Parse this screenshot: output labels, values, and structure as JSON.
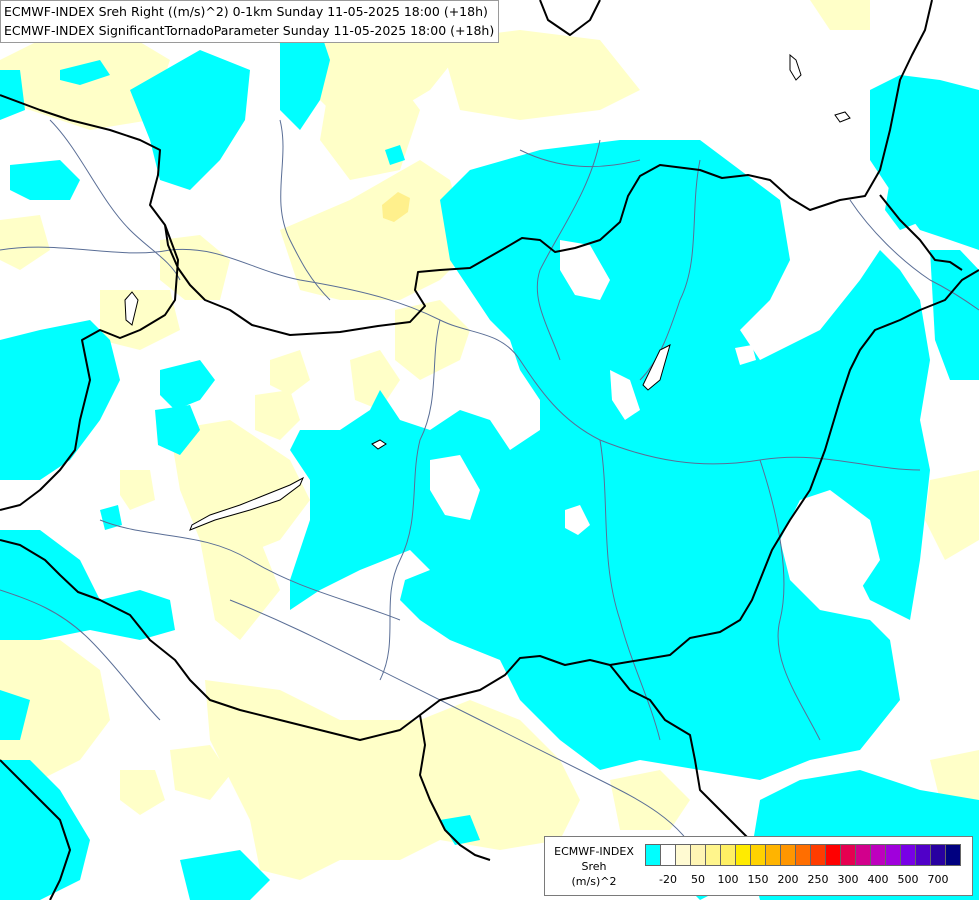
{
  "title": {
    "line1": "ECMWF-INDEX Sreh Right ((m/s)^2) 0-1km Sunday 11-05-2025 18:00 (+18h)",
    "line2": "ECMWF-INDEX SignificantTornadoParameter Sunday 11-05-2025 18:00 (+18h)"
  },
  "legend": {
    "caption": [
      "ECMWF-INDEX",
      "Sreh",
      "(m/s)^2"
    ],
    "swatch_colors": [
      "#00ffff",
      "#ffffff",
      "#fffad2",
      "#fff5b4",
      "#fff58c",
      "#fff064",
      "#ffeb00",
      "#ffd200",
      "#ffb400",
      "#ff9600",
      "#ff6e00",
      "#ff3c00",
      "#ff0000",
      "#e60050",
      "#d2008c",
      "#be00be",
      "#a000dc",
      "#7800e6",
      "#5000c8",
      "#2800a0",
      "#000080"
    ],
    "tick_labels": [
      "-20",
      "50",
      "100",
      "150",
      "200",
      "250",
      "300",
      "400",
      "500",
      "700"
    ]
  },
  "colors": {
    "low_shading": "#00ffff",
    "light_shading": "#ffffc8",
    "yellow_shading": "#fff08c",
    "border_line": "#000000",
    "river_line": "#5a6e96"
  }
}
